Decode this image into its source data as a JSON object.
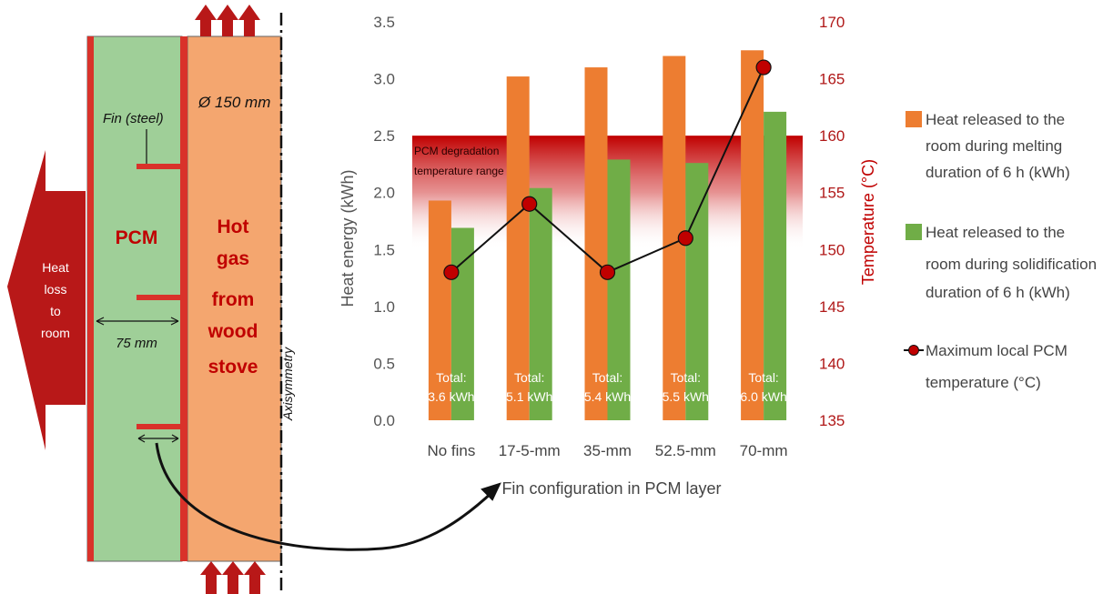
{
  "diagram": {
    "pcm_label": "PCM",
    "fin_label": "Fin (steel)",
    "diameter_label": "Ø 150 mm",
    "gas_lines": [
      "Hot",
      "gas",
      "from",
      "wood",
      "stove"
    ],
    "heat_loss_lines": [
      "Heat",
      "loss",
      "to",
      "room"
    ],
    "width_label": "75 mm",
    "axis_label": "Axisymmetry",
    "colors": {
      "pcm": "#9fcf98",
      "gas": "#f4a66f",
      "wall": "#d9322a",
      "arrow": "#b81818"
    }
  },
  "chart_data": {
    "type": "bar",
    "categories": [
      "No fins",
      "17-5-mm",
      "35-mm",
      "52.5-mm",
      "70-mm"
    ],
    "series": [
      {
        "name": "Heat released to the room during melting duration of 6 h (kWh)",
        "values": [
          1.93,
          3.02,
          3.1,
          3.2,
          3.25
        ],
        "color": "#ed7d31",
        "axis": "left"
      },
      {
        "name": "Heat released to the room during solidification duration of 6 h (kWh)",
        "values": [
          1.69,
          2.04,
          2.29,
          2.26,
          2.71
        ],
        "color": "#70ad47",
        "axis": "left"
      },
      {
        "name": "Maximum local PCM temperature (°C)",
        "values": [
          148,
          154,
          148,
          151,
          166
        ],
        "color": "#c00000",
        "type": "line",
        "axis": "right"
      }
    ],
    "totals": [
      "Total: 3.6 kWh",
      "Total: 5.1 kWh",
      "Total: 5.4 kWh",
      "Total: 5.5 kWh",
      "Total: 6.0 kWh"
    ],
    "xlabel": "Fin configuration in PCM layer",
    "ylabel": "Heat energy (kWh)",
    "y2label": "Temperature (°C)",
    "ylim": [
      0,
      3.5
    ],
    "yticks": [
      0.0,
      0.5,
      1.0,
      1.5,
      2.0,
      2.5,
      3.0,
      3.5
    ],
    "y2lim": [
      135,
      170
    ],
    "y2ticks": [
      135,
      140,
      145,
      150,
      155,
      160,
      165,
      170
    ],
    "band": {
      "label_lines": [
        "PCM degradation",
        "temperature range"
      ],
      "y2_from": 150,
      "y2_to": 160,
      "color": "#c00000"
    },
    "legend_position": "right",
    "legend": [
      {
        "lines": [
          "Heat released to the",
          "room during melting",
          "duration of 6 h (kWh)"
        ]
      },
      {
        "lines": [
          "Heat released to the",
          "room during solidification",
          "duration of 6 h (kWh)"
        ]
      },
      {
        "lines": [
          "Maximum local PCM",
          "temperature (°C)"
        ]
      }
    ],
    "grid": false
  }
}
